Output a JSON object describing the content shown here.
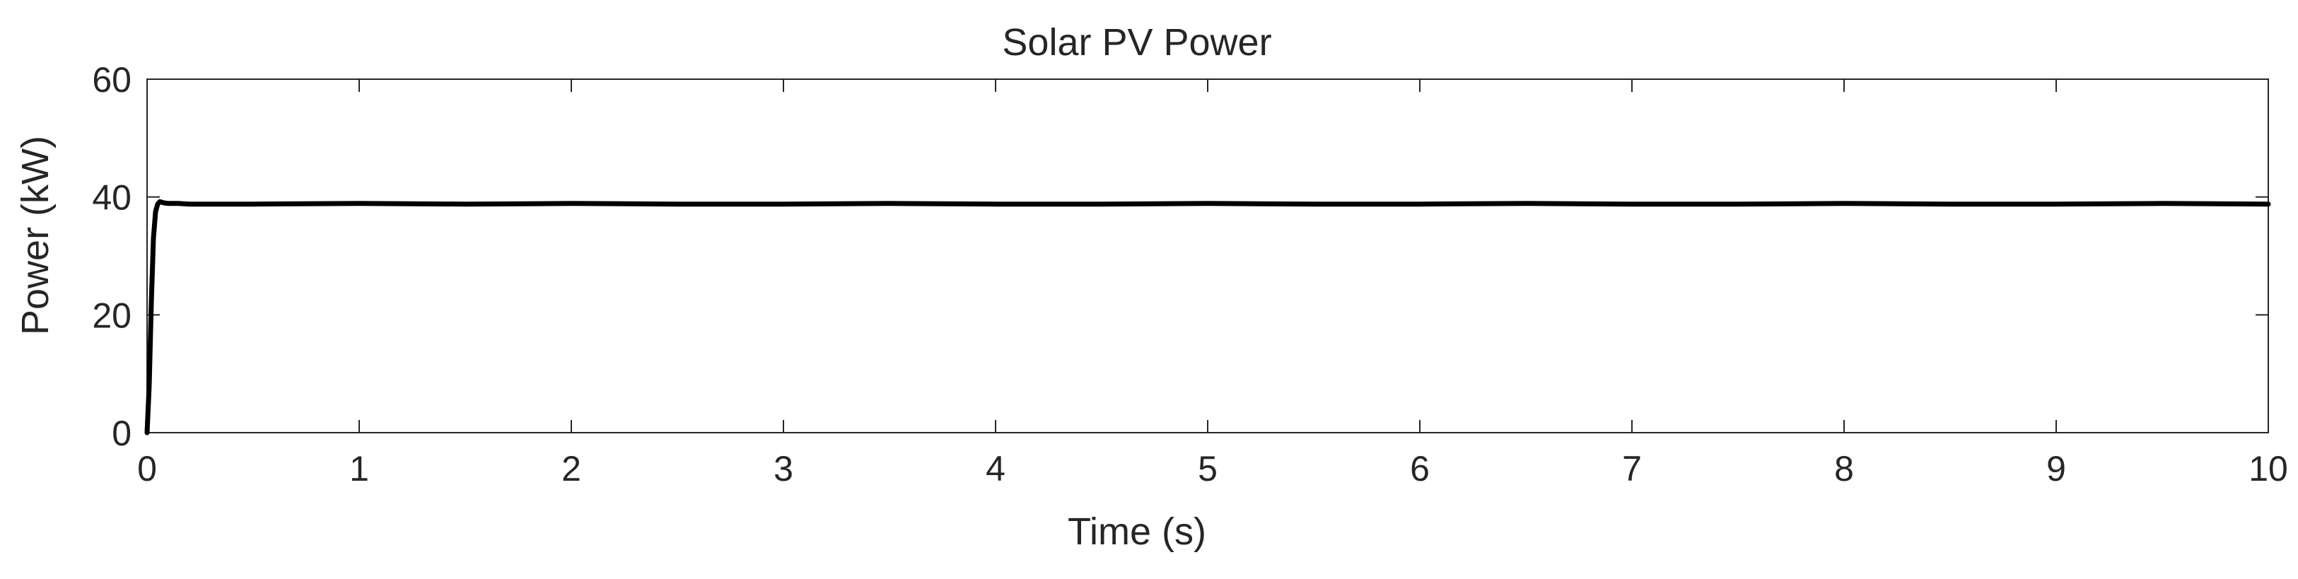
{
  "chart_data": {
    "type": "line",
    "title": "Solar PV Power",
    "xlabel": "Time (s)",
    "ylabel": "Power (kW)",
    "xlim": [
      0,
      10
    ],
    "ylim": [
      0,
      60
    ],
    "xticks": [
      0,
      1,
      2,
      3,
      4,
      5,
      6,
      7,
      8,
      9,
      10
    ],
    "yticks": [
      0,
      20,
      40,
      60
    ],
    "grid": false,
    "box": true,
    "line_color": "#000000",
    "series": [
      {
        "x": [
          0,
          0.01,
          0.02,
          0.03,
          0.04,
          0.05,
          0.06,
          0.08,
          0.1,
          0.15,
          0.2,
          0.3,
          0.5,
          1,
          1.5,
          2,
          2.5,
          3,
          3.5,
          4,
          4.5,
          5,
          5.5,
          6,
          6.5,
          7,
          7.5,
          8,
          8.5,
          9,
          9.5,
          10
        ],
        "values": [
          0,
          8,
          22,
          33,
          37.5,
          38.8,
          39.2,
          39.0,
          38.9,
          38.9,
          38.8,
          38.8,
          38.8,
          38.9,
          38.8,
          38.9,
          38.8,
          38.8,
          38.9,
          38.8,
          38.8,
          38.9,
          38.8,
          38.8,
          38.9,
          38.8,
          38.8,
          38.9,
          38.8,
          38.8,
          38.9,
          38.8
        ]
      }
    ]
  }
}
